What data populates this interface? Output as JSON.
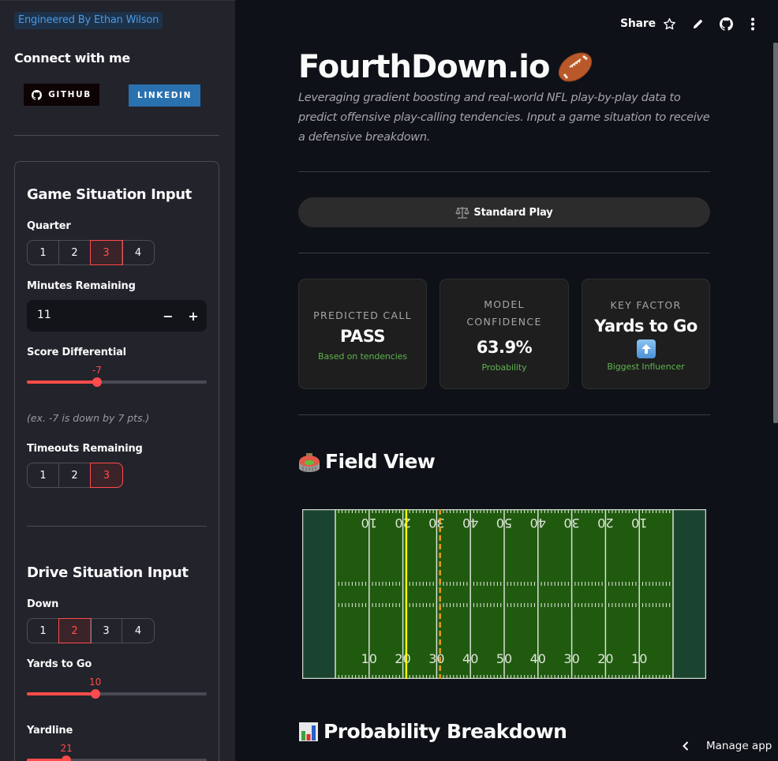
{
  "sidebar": {
    "credit": "Engineered By Ethan Wilson",
    "connect_title": "Connect with me",
    "badges": [
      {
        "label": "GITHUB",
        "icon": "github-icon",
        "bg": "#0d0204"
      },
      {
        "label": "LINKEDIN",
        "bg": "#2a71b0"
      }
    ],
    "game_section": {
      "title": "Game Situation Input",
      "quarter": {
        "label": "Quarter",
        "options": [
          "1",
          "2",
          "3",
          "4"
        ],
        "selected": "3"
      },
      "minutes": {
        "label": "Minutes Remaining",
        "value": "11",
        "decrement": "−",
        "increment": "+"
      },
      "score": {
        "label": "Score Differential",
        "value": "-7",
        "fill_pct": 39,
        "hint": "(ex. -7 is down by 7 pts.)"
      },
      "timeouts": {
        "label": "Timeouts Remaining",
        "options": [
          "1",
          "2",
          "3"
        ],
        "selected": "3"
      }
    },
    "drive_section": {
      "title": "Drive Situation Input",
      "down": {
        "label": "Down",
        "options": [
          "1",
          "2",
          "3",
          "4"
        ],
        "selected": "2"
      },
      "yards_to_go": {
        "label": "Yards to Go",
        "value": "10",
        "fill_pct": 38
      },
      "yardline": {
        "label": "Yardline",
        "value": "21",
        "fill_pct": 22
      }
    }
  },
  "toolbar": {
    "share_label": "Share",
    "icons": [
      "star-icon",
      "pencil-icon",
      "github-icon",
      "more-vertical-icon"
    ]
  },
  "header": {
    "title": "FourthDown.io",
    "title_emoji": "football-icon",
    "subtitle": "Leveraging gradient boosting and real-world NFL play-by-play data to predict offensive play-calling tendencies. Input a game situation to receive a defensive breakdown."
  },
  "play_type": {
    "icon": "balance-scale-icon",
    "label": "Standard Play"
  },
  "metrics": [
    {
      "label": "PREDICTED CALL",
      "value": "PASS",
      "sub": "Based on tendencies"
    },
    {
      "label": "MODEL CONFIDENCE",
      "value": "63.9%",
      "sub": "Probability"
    },
    {
      "label": "KEY FACTOR",
      "value": "Yards to Go",
      "value_icon": "up-arrow-icon",
      "sub": "Biggest Influencer"
    }
  ],
  "field_view": {
    "title": "Field View",
    "icon": "stadium-icon",
    "line_of_scrimmage_yard": 21,
    "first_down_yard": 31,
    "yard_numbers": [
      "10",
      "20",
      "30",
      "40",
      "50",
      "40",
      "30",
      "20",
      "10"
    ],
    "colors": {
      "field": "#1f5a0e",
      "endzone": "#1a4430",
      "scrimmage": "#ffff00",
      "first_down": "#e89a1c"
    }
  },
  "probability": {
    "title": "Probability Breakdown",
    "icon": "bar-chart-icon"
  },
  "footer": {
    "manage_label": "Manage app"
  },
  "colors": {
    "accent": "#ff4b4b",
    "success_text": "#5fb34f",
    "credit_text": "#4a9be6"
  }
}
